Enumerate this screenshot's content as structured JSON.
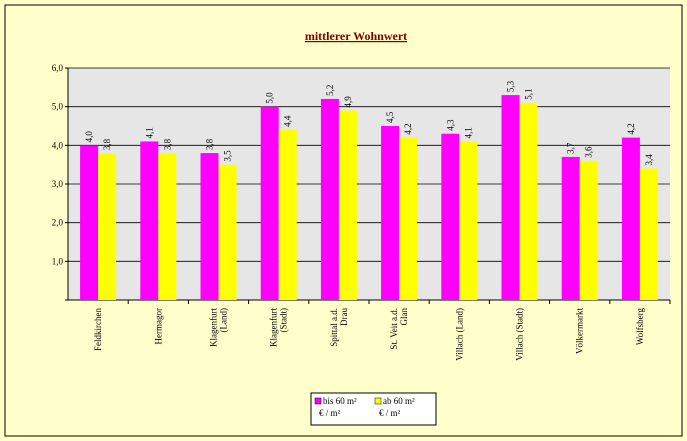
{
  "chart_data": {
    "type": "bar",
    "title": "mittlerer Wohnwert",
    "categories": [
      "Feldkirchen",
      "Hermagor",
      "Klagenfurt\n(Land)",
      "Klagenfurt\n(Stadt)",
      "Spittal a.d.\nDrau",
      "St. Veit a.d.\nGlan",
      "Villach (Land)",
      "Villach (Stadt)",
      "Völkermarkt",
      "Wolfsberg"
    ],
    "series": [
      {
        "name": "bis 60 m²\n€ / m²",
        "color": "#ff00ff",
        "values": [
          4.0,
          4.1,
          3.8,
          5.0,
          5.2,
          4.5,
          4.3,
          5.3,
          3.7,
          4.2
        ],
        "value_labels": [
          "4,0",
          "4,1",
          "3,8",
          "5,0",
          "5,2",
          "4,5",
          "4,3",
          "5,3",
          "3,7",
          "4,2"
        ]
      },
      {
        "name": "ab 60 m²\n€ / m²",
        "color": "#ffff00",
        "values": [
          3.8,
          3.8,
          3.5,
          4.4,
          4.9,
          4.2,
          4.1,
          5.1,
          3.6,
          3.4
        ],
        "value_labels": [
          "3,8",
          "3,8",
          "3,5",
          "4,4",
          "4,9",
          "4,2",
          "4,1",
          "5,1",
          "3,6",
          "3,4"
        ]
      }
    ],
    "ylim": [
      0,
      6
    ],
    "yticks": [
      0,
      {
        "value": 1,
        "label": "1,0"
      },
      {
        "value": 2,
        "label": "2,0"
      },
      {
        "value": 3,
        "label": "3,0"
      },
      {
        "value": 4,
        "label": "4,0"
      },
      {
        "value": 5,
        "label": "5,0"
      },
      {
        "value": 6,
        "label": "6,0"
      }
    ],
    "grid": true,
    "legend": "bottom"
  }
}
